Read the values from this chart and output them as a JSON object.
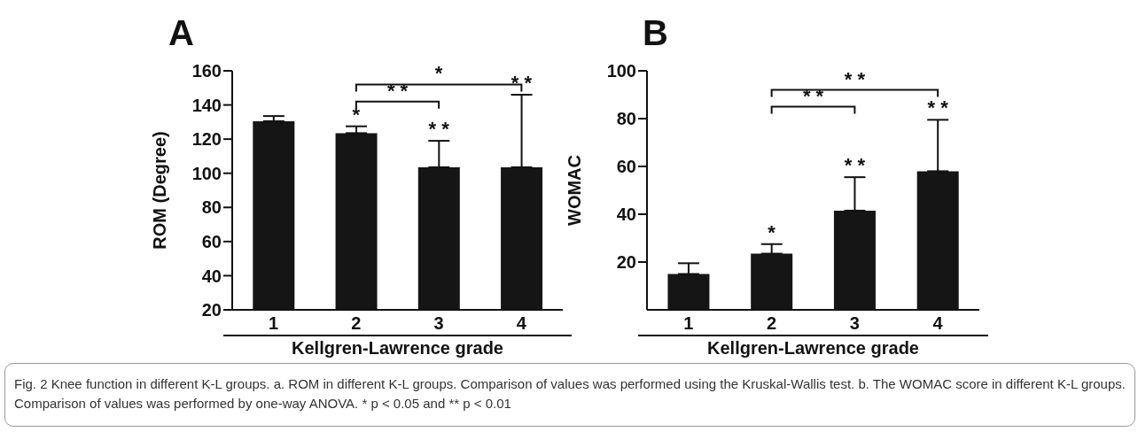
{
  "chart_data": [
    {
      "type": "bar",
      "title": "A",
      "xlabel": "Kellgren-Lawrence grade",
      "ylabel": "ROM (Degree)",
      "categories": [
        "1",
        "2",
        "3",
        "4"
      ],
      "values": [
        130.5,
        123.5,
        103.5,
        103.5
      ],
      "errors": [
        [
          130.5,
          133.5
        ],
        [
          123.5,
          127.5
        ],
        [
          103.5,
          119
        ],
        [
          103.5,
          146
        ]
      ],
      "color": "#151515",
      "ylim": [
        20,
        160
      ],
      "yticks": [
        20,
        40,
        60,
        80,
        100,
        120,
        140,
        160
      ],
      "annotations": [
        "*",
        "* *",
        "* *",
        "* *",
        "*",
        "Fig. 2 Knee function in different K-L groups. a. ROM in different K-L groups. Comparison of values was performed using the Kruskal-Wallis test. b. The WOMAC score in different K-L groups. Comparison of values was performed by one-way ANOVA. * p < 0.05 and ** p < 0.01"
      ]
    },
    {
      "type": "bar",
      "title": "B",
      "xlabel": "Kellgren-Lawrence grade",
      "ylabel": "WOMAC",
      "categories": [
        "1",
        "2",
        "3",
        "4"
      ],
      "values": [
        15,
        23.5,
        41.5,
        58
      ],
      "errors": [
        [
          15,
          19.5
        ],
        [
          23.5,
          27.5
        ],
        [
          41.5,
          55.5
        ],
        [
          58,
          79.5
        ]
      ],
      "color": "#151515",
      "ylim": [
        0,
        100
      ],
      "yticks": [
        20,
        40,
        60,
        80,
        100
      ],
      "annotations": [
        "*",
        "* *",
        "* *",
        "* *",
        "* *"
      ]
    }
  ]
}
